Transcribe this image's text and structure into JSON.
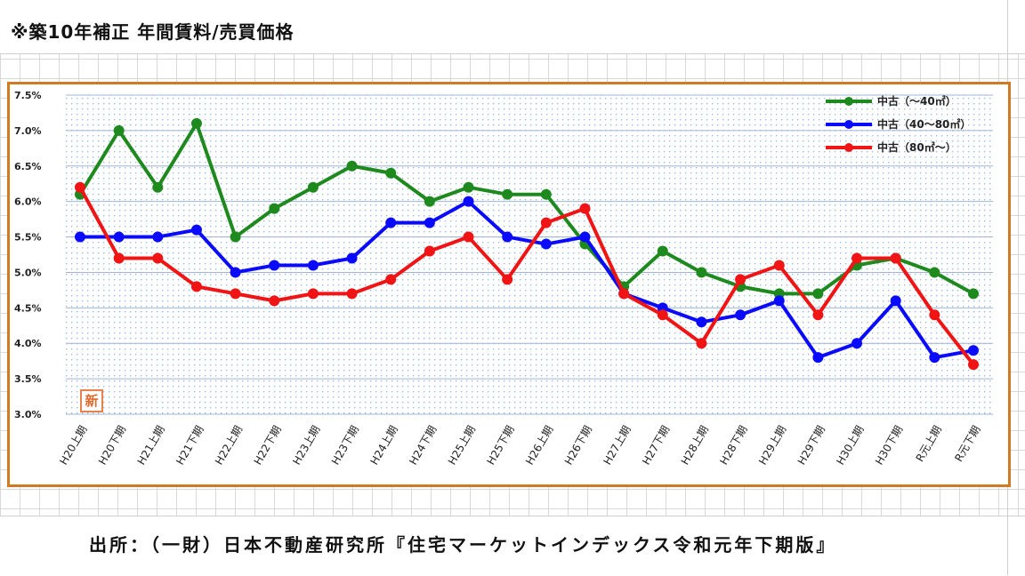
{
  "page": {
    "title": "※築10年補正 年間賃料/売買価格",
    "source": "出所：（一財）日本不動産研究所『住宅マーケットインデックス令和元年下期版』",
    "badge": "新"
  },
  "chart_data": {
    "type": "line",
    "title": "",
    "xlabel": "",
    "ylabel": "",
    "categories": [
      "H20上期",
      "H20下期",
      "H21上期",
      "H21下期",
      "H22上期",
      "H22下期",
      "H23上期",
      "H23下期",
      "H24上期",
      "H24下期",
      "H25上期",
      "H25下期",
      "H26上期",
      "H26下期",
      "H27上期",
      "H27下期",
      "H28上期",
      "H28下期",
      "H29上期",
      "H29下期",
      "H30上期",
      "H30下期",
      "R元上期",
      "R元下期"
    ],
    "ylim": [
      3.0,
      7.5
    ],
    "yticks": [
      "7.5%",
      "7.0%",
      "6.5%",
      "6.0%",
      "5.5%",
      "5.0%",
      "4.5%",
      "4.0%",
      "3.5%",
      "3.0%"
    ],
    "ytick_values": [
      7.5,
      7.0,
      6.5,
      6.0,
      5.5,
      5.0,
      4.5,
      4.0,
      3.5,
      3.0
    ],
    "grid": true,
    "legend_position": "top-right",
    "series": [
      {
        "name": "中古（～40㎡）",
        "color": "#1e8a1e",
        "values": [
          6.1,
          7.0,
          6.2,
          7.1,
          5.5,
          5.9,
          6.2,
          6.5,
          6.4,
          6.0,
          6.2,
          6.1,
          6.1,
          5.4,
          4.8,
          5.3,
          5.0,
          4.8,
          4.7,
          4.7,
          5.1,
          5.2,
          5.0,
          4.7
        ]
      },
      {
        "name": "中古（40～80㎡）",
        "color": "#0a0aff",
        "values": [
          5.5,
          5.5,
          5.5,
          5.6,
          5.0,
          5.1,
          5.1,
          5.2,
          5.7,
          5.7,
          6.0,
          5.5,
          5.4,
          5.5,
          4.7,
          4.5,
          4.3,
          4.4,
          4.6,
          3.8,
          4.0,
          4.6,
          3.8,
          3.9
        ]
      },
      {
        "name": "中古（80㎡～）",
        "color": "#f01414",
        "values": [
          6.2,
          5.2,
          5.2,
          4.8,
          4.7,
          4.6,
          4.7,
          4.7,
          4.9,
          5.3,
          5.5,
          4.9,
          5.7,
          5.9,
          4.7,
          4.4,
          4.0,
          4.9,
          5.1,
          4.4,
          5.2,
          5.2,
          4.4,
          3.7
        ]
      }
    ]
  }
}
